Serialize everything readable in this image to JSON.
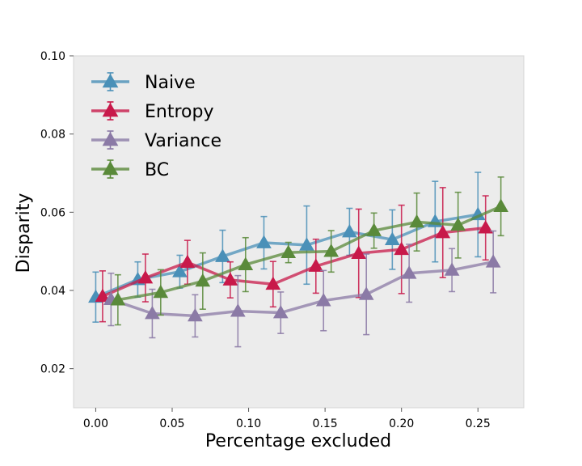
{
  "chart_data": {
    "type": "line",
    "xlabel": "Percentage excluded",
    "ylabel": "Disparity",
    "xlim": [
      -0.0145,
      0.28
    ],
    "ylim": [
      0.01,
      0.1
    ],
    "xticks": [
      0.0,
      0.05,
      0.1,
      0.15,
      0.2,
      0.25
    ],
    "xtick_labels": [
      "0.00",
      "0.05",
      "0.10",
      "0.15",
      "0.20",
      "0.25"
    ],
    "yticks": [
      0.02,
      0.04,
      0.06,
      0.08,
      0.1
    ],
    "ytick_labels": [
      "0.02",
      "0.04",
      "0.06",
      "0.08",
      "0.10"
    ],
    "grid": false,
    "legend_position": "top-left",
    "background": "#ececec",
    "series": [
      {
        "name": "Naive",
        "color": "#4a90b8",
        "marker": "triangle",
        "x": [
          0.0,
          0.0275,
          0.055,
          0.083,
          0.11,
          0.138,
          0.166,
          0.194,
          0.222,
          0.25
        ],
        "y": [
          0.0383,
          0.0428,
          0.0448,
          0.0487,
          0.0522,
          0.0516,
          0.055,
          0.053,
          0.0576,
          0.0594
        ],
        "err": [
          0.0064,
          0.0045,
          0.0042,
          0.0067,
          0.0067,
          0.01,
          0.006,
          0.0076,
          0.0103,
          0.0108
        ]
      },
      {
        "name": "Entropy",
        "color": "#c8194a",
        "marker": "triangle",
        "x": [
          0.0045,
          0.0325,
          0.06,
          0.088,
          0.116,
          0.144,
          0.172,
          0.2,
          0.227,
          0.255
        ],
        "y": [
          0.0385,
          0.0432,
          0.0472,
          0.0427,
          0.0416,
          0.0462,
          0.0495,
          0.0505,
          0.0548,
          0.056
        ],
        "err": [
          0.0065,
          0.0061,
          0.0056,
          0.0046,
          0.0058,
          0.0069,
          0.0113,
          0.0113,
          0.0115,
          0.0082
        ]
      },
      {
        "name": "Variance",
        "color": "#8b7aa6",
        "marker": "triangle",
        "x": [
          0.01,
          0.037,
          0.065,
          0.093,
          0.121,
          0.149,
          0.177,
          0.205,
          0.233,
          0.26
        ],
        "y": [
          0.0377,
          0.0341,
          0.0335,
          0.0347,
          0.0343,
          0.0374,
          0.039,
          0.0444,
          0.0452,
          0.0473
        ],
        "err": [
          0.0067,
          0.0062,
          0.0054,
          0.0091,
          0.0053,
          0.0077,
          0.0103,
          0.0074,
          0.0055,
          0.0079
        ]
      },
      {
        "name": "BC",
        "color": "#5a8a3a",
        "marker": "triangle",
        "x": [
          0.0145,
          0.0425,
          0.07,
          0.098,
          0.126,
          0.154,
          0.182,
          0.21,
          0.237,
          0.265
        ],
        "y": [
          0.0376,
          0.0395,
          0.0424,
          0.0466,
          0.0497,
          0.05,
          0.0553,
          0.0575,
          0.0567,
          0.0615
        ],
        "err": [
          0.0064,
          0.0058,
          0.0072,
          0.0069,
          0.0026,
          0.0053,
          0.0045,
          0.0074,
          0.0084,
          0.0075
        ]
      }
    ]
  }
}
